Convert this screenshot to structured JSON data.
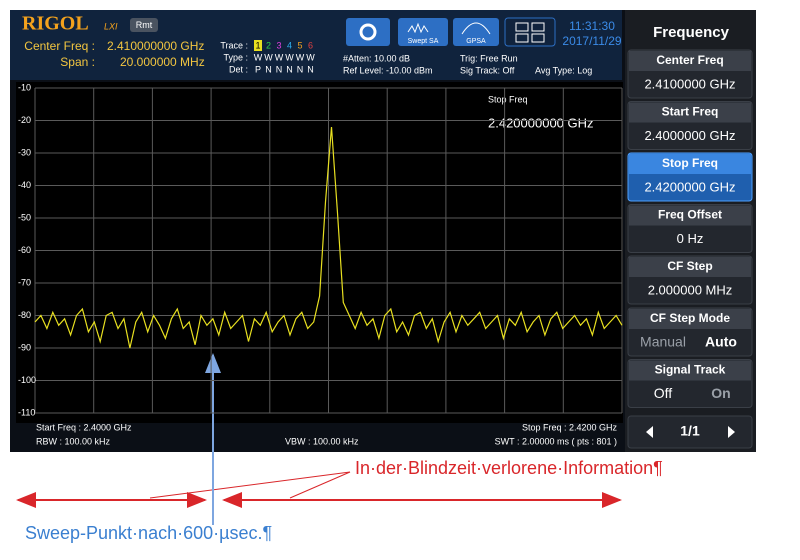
{
  "header": {
    "brand": "RIGOL",
    "brand_sub": "LXI",
    "rmt": "Rmt",
    "center_freq_label": "Center Freq :",
    "center_freq": "2.410000000 GHz",
    "span_label": "Span :",
    "span": "20.000000 MHz",
    "trace_label": "Trace :",
    "trace_numbers": [
      "1",
      "2",
      "3",
      "4",
      "5",
      "6"
    ],
    "type_label": "Type :",
    "type_values": [
      "W",
      "W",
      "W",
      "W",
      "W",
      "W"
    ],
    "det_label": "Det :",
    "det_values": [
      "P",
      "N",
      "N",
      "N",
      "N",
      "N"
    ],
    "atten": "#Atten: 10.00 dB",
    "ref_level": "Ref Level: -10.00 dBm",
    "trig": "Trig: Free Run",
    "sig_track": "Sig Track: Off",
    "avg_type": "Avg Type: Log",
    "buttons": [
      "Swept SA",
      "GPSA"
    ],
    "time": "11:31:30",
    "date": "2017/11/29"
  },
  "chart_data": {
    "type": "line",
    "marker_label": "Stop Freq",
    "marker_value": "2.420000000 GHz",
    "series": [
      {
        "color": "#e8e020",
        "values": [
          -82,
          -80,
          -84,
          -79,
          -83,
          -81,
          -86,
          -80,
          -78,
          -85,
          -82,
          -88,
          -80,
          -79,
          -84,
          -81,
          -90,
          -82,
          -79,
          -85,
          -80,
          -83,
          -87,
          -81,
          -78,
          -84,
          -82,
          -89,
          -80,
          -83,
          -81,
          -86,
          -79,
          -84,
          -82,
          -80,
          -88,
          -81,
          -83,
          -79,
          -85,
          -82,
          -80,
          -86,
          -81,
          -79,
          -84,
          -82,
          -74,
          -45,
          -22,
          -48,
          -76,
          -80,
          -84,
          -79,
          -83,
          -81,
          -87,
          -80,
          -78,
          -85,
          -82,
          -86,
          -80,
          -79,
          -84,
          -81,
          -88,
          -82,
          -79,
          -85,
          -80,
          -83,
          -81,
          -79,
          -84,
          -82,
          -80,
          -87,
          -81,
          -83,
          -79,
          -85,
          -82,
          -80,
          -86,
          -81,
          -79,
          -84,
          -82,
          -80,
          -83,
          -81,
          -86,
          -79,
          -84,
          -82,
          -80,
          -83
        ]
      }
    ],
    "ylim": [
      -110,
      -10
    ],
    "yticks": [
      -10,
      -20,
      -30,
      -40,
      -50,
      -60,
      -70,
      -80,
      -90,
      -100,
      -110
    ],
    "grid": true
  },
  "footer": {
    "start_freq": "Start Freq : 2.4000 GHz",
    "rbw": "RBW : 100.00 kHz",
    "vbw": "VBW : 100.00 kHz",
    "stop_freq": "Stop Freq : 2.4200 GHz",
    "swt": "SWT : 2.00000 ms ( pts : 801 )"
  },
  "menu": {
    "title": "Frequency",
    "items": [
      {
        "label": "Center Freq",
        "value": "2.4100000 GHz"
      },
      {
        "label": "Start Freq",
        "value": "2.4000000 GHz"
      },
      {
        "label": "Stop Freq",
        "value": "2.4200000 GHz"
      },
      {
        "label": "Freq Offset",
        "value": "0 Hz"
      },
      {
        "label": "CF Step",
        "value": "2.000000 MHz"
      }
    ],
    "cf_step_mode": {
      "label": "CF Step Mode",
      "options": [
        "Manual",
        "Auto"
      ]
    },
    "signal_track": {
      "label": "Signal Track",
      "options": [
        "Off",
        "On"
      ]
    },
    "page": "1/1"
  },
  "annotations": {
    "lost_info": "In·der·Blindzeit·verlorene·Information¶",
    "sweep_point": "Sweep-Punkt·nach·600·µsec.¶"
  }
}
